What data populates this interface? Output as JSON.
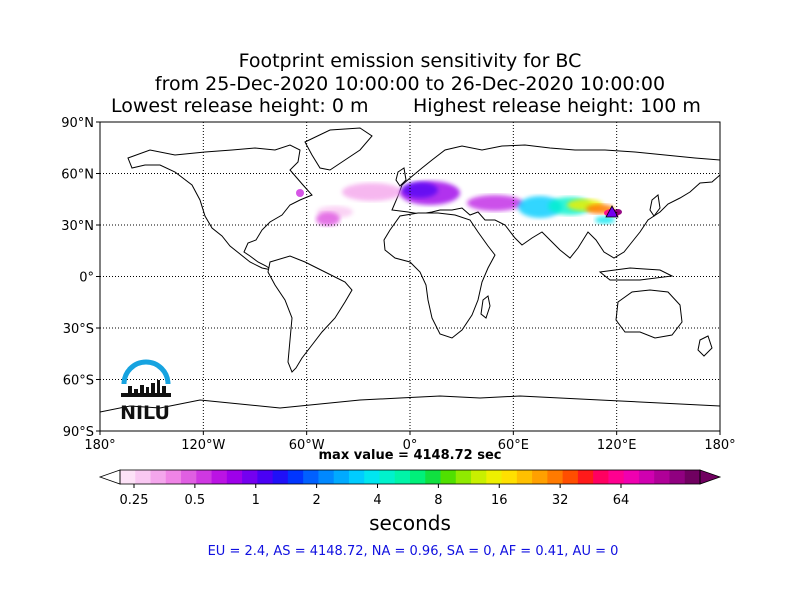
{
  "title": {
    "line1": "Footprint emission sensitivity for BC",
    "line2": "from 25-Dec-2020 10:00:00 to 26-Dec-2020 10:00:00",
    "lowest": "Lowest release height: 0 m",
    "highest": "Highest release height: 100 m"
  },
  "map": {
    "lon_range": [
      -180,
      180
    ],
    "lat_range": [
      -90,
      90
    ],
    "grid": "dotted",
    "lat_ticks": [
      "90°N",
      "60°N",
      "30°N",
      "0°",
      "30°S",
      "60°S",
      "90°S"
    ],
    "lon_ticks": [
      "180°",
      "120°W",
      "60°W",
      "0°",
      "60°E",
      "120°E",
      "180°"
    ]
  },
  "logo": {
    "text": "NILU",
    "color": "#16a3e0"
  },
  "max_value": "max value = 4148.72 sec",
  "colorbar": {
    "tick_labels": [
      "0.25",
      "0.5",
      "1",
      "2",
      "4",
      "8",
      "16",
      "32",
      "64"
    ],
    "unit": "seconds",
    "colors": [
      "#fde2f7",
      "#f9c8f2",
      "#f4a6ec",
      "#ef84e6",
      "#e05fe2",
      "#cf38e2",
      "#bb13e4",
      "#9e00ea",
      "#7400f0",
      "#4a00f5",
      "#1f10f8",
      "#0035ff",
      "#0060ff",
      "#0088ff",
      "#00aaff",
      "#00ccff",
      "#00e6f0",
      "#00f2cc",
      "#00f5a8",
      "#00f07a",
      "#10e040",
      "#50e000",
      "#90ea00",
      "#c8f000",
      "#eef000",
      "#ffe000",
      "#ffc000",
      "#ffa000",
      "#ff7a00",
      "#ff4e00",
      "#ff1a1a",
      "#ff0060",
      "#ff0090",
      "#f000b0",
      "#d000b0",
      "#b00098",
      "#900080",
      "#700060"
    ]
  },
  "region_summary": "EU = 2.4,  AS = 4148.72,  NA = 0.96,  SA = 0,  AF = 0.41,  AU = 0"
}
